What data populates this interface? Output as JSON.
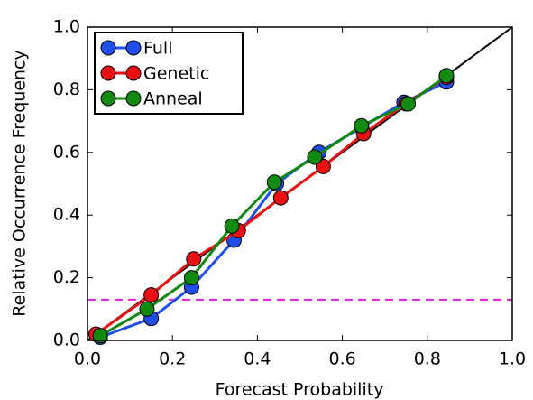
{
  "chart_data": {
    "type": "line",
    "x_label": "Forecast Probability",
    "y_label": "Relative Occurrence Frequency",
    "xlim": [
      0,
      1
    ],
    "ylim": [
      0,
      1
    ],
    "xticks": [
      {
        "value": 0,
        "label": "0.0"
      },
      0.2,
      0.4,
      0.6,
      0.8,
      {
        "value": 1,
        "label": "1.0"
      }
    ],
    "yticks": [
      {
        "value": 0,
        "label": "0.0"
      },
      0.2,
      0.4,
      0.6,
      0.8,
      {
        "value": 1,
        "label": "1.0"
      }
    ],
    "diagonal": true,
    "diagonal_color": "#000000",
    "hline": {
      "value": 0.13,
      "color": "#e020e0",
      "style": "dashed"
    },
    "legend": "upper left",
    "series": [
      {
        "name": "Full",
        "color": "#1f4ee8",
        "x": [
          0.03,
          0.15,
          0.245,
          0.345,
          0.445,
          0.545,
          0.645,
          0.745,
          0.845
        ],
        "values": [
          0.01,
          0.07,
          0.17,
          0.32,
          0.5,
          0.6,
          0.68,
          0.76,
          0.825
        ]
      },
      {
        "name": "Genetic",
        "color": "#e81010",
        "x": [
          0.02,
          0.15,
          0.25,
          0.355,
          0.455,
          0.555,
          0.65,
          0.75,
          0.845
        ],
        "values": [
          0.02,
          0.145,
          0.26,
          0.35,
          0.455,
          0.555,
          0.66,
          0.755,
          0.84
        ]
      },
      {
        "name": "Anneal",
        "color": "#108a10",
        "x": [
          0.03,
          0.14,
          0.245,
          0.34,
          0.44,
          0.535,
          0.645,
          0.755,
          0.845
        ],
        "values": [
          0.015,
          0.1,
          0.2,
          0.365,
          0.505,
          0.585,
          0.685,
          0.755,
          0.845
        ]
      }
    ]
  }
}
